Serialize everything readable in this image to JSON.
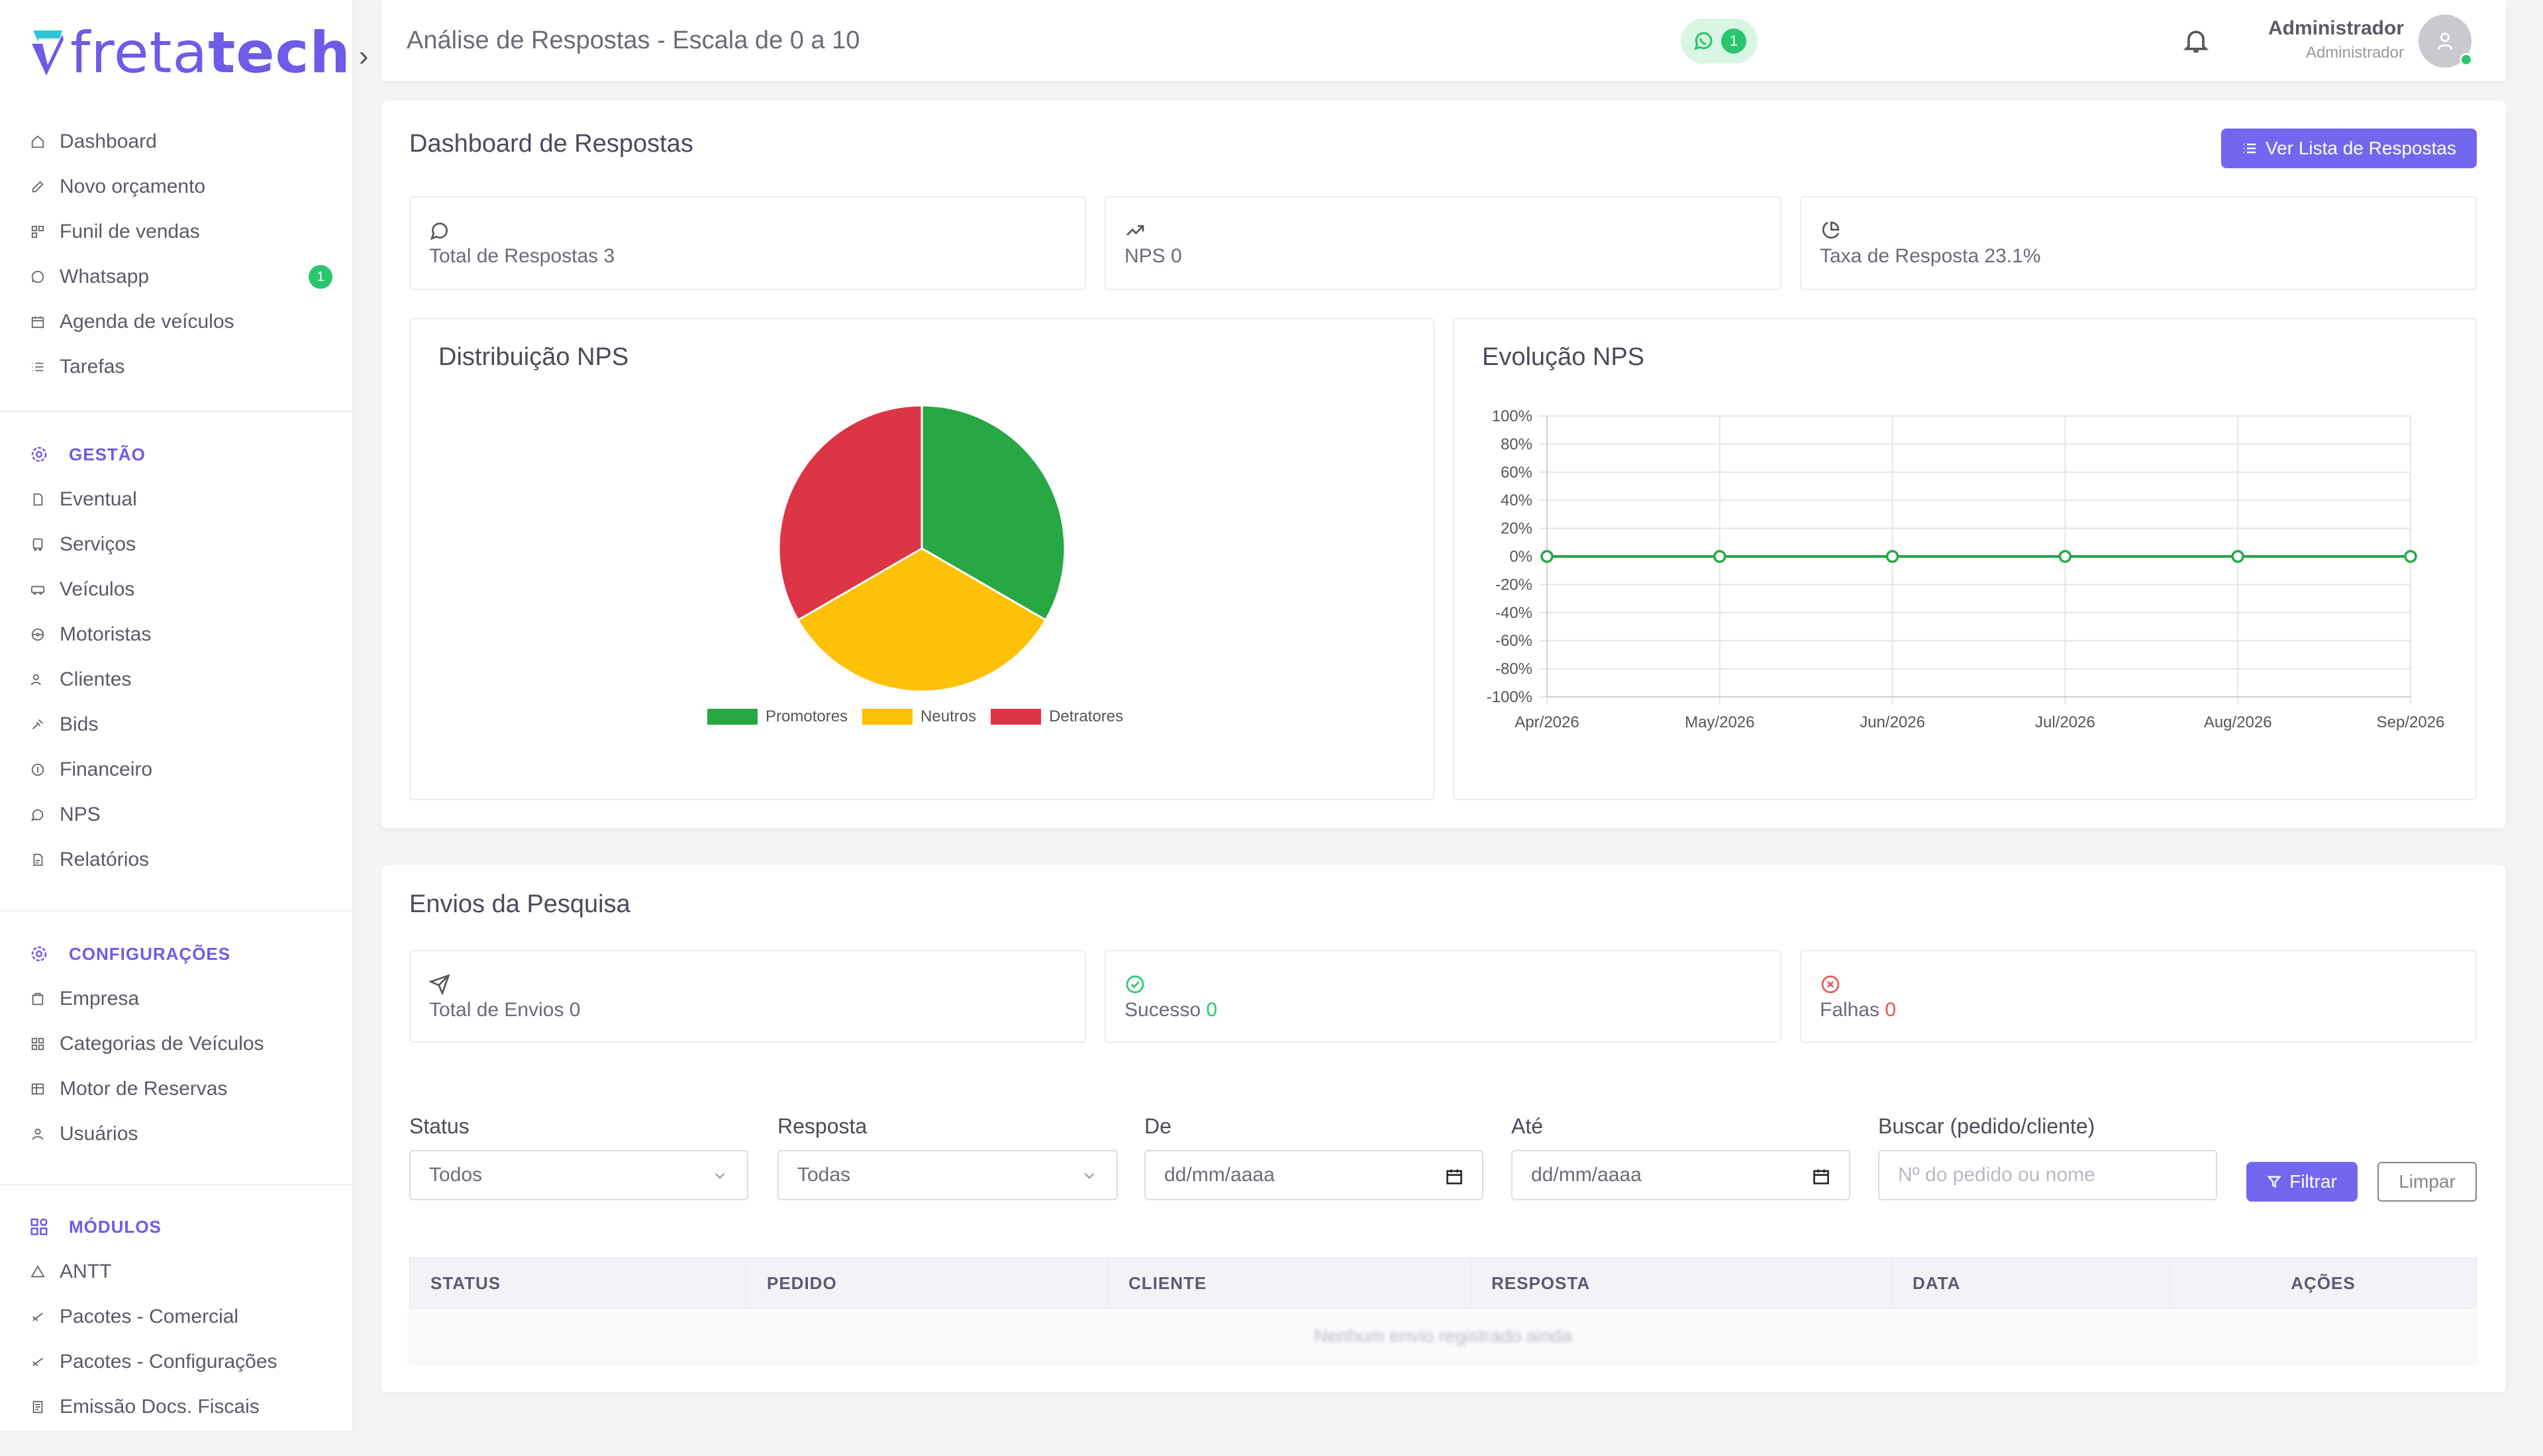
{
  "brand": {
    "name_part1": "freta",
    "name_part2": "tech",
    "accent": "#6c5ce7"
  },
  "sidebar": {
    "items": [
      {
        "label": "Dashboard",
        "icon": "home-icon"
      },
      {
        "label": "Novo orçamento",
        "icon": "edit-icon"
      },
      {
        "label": "Funil de vendas",
        "icon": "funnel-icon"
      },
      {
        "label": "Whatsapp",
        "icon": "whatsapp-icon",
        "badge": "1"
      },
      {
        "label": "Agenda de veículos",
        "icon": "calendar-icon"
      },
      {
        "label": "Tarefas",
        "icon": "list-icon"
      }
    ],
    "gestao_title": "GESTÃO",
    "gestao": [
      {
        "label": "Eventual",
        "icon": "file-icon"
      },
      {
        "label": "Serviços",
        "icon": "bus-icon"
      },
      {
        "label": "Veículos",
        "icon": "truck-icon"
      },
      {
        "label": "Motoristas",
        "icon": "steering-icon"
      },
      {
        "label": "Clientes",
        "icon": "users-icon"
      },
      {
        "label": "Bids",
        "icon": "gavel-icon"
      },
      {
        "label": "Financeiro",
        "icon": "coin-icon"
      },
      {
        "label": "NPS",
        "icon": "chat-icon"
      },
      {
        "label": "Relatórios",
        "icon": "report-icon"
      }
    ],
    "config_title": "CONFIGURAÇÕES",
    "config": [
      {
        "label": "Empresa",
        "icon": "building-icon"
      },
      {
        "label": "Categorias de Veículos",
        "icon": "grid-icon"
      },
      {
        "label": "Motor de Reservas",
        "icon": "table-icon"
      },
      {
        "label": "Usuários",
        "icon": "user-icon"
      }
    ],
    "modulos_title": "MÓDULOS",
    "modulos": [
      {
        "label": "ANTT",
        "icon": "triangle-icon"
      },
      {
        "label": "Pacotes - Comercial",
        "icon": "package-icon"
      },
      {
        "label": "Pacotes - Configurações",
        "icon": "package-settings-icon"
      },
      {
        "label": "Emissão Docs. Fiscais",
        "icon": "document-icon"
      }
    ]
  },
  "header": {
    "title": "Análise de Respostas - Escala de 0 a 10",
    "whatsapp_count": "1",
    "user_name": "Administrador",
    "user_role": "Administrador"
  },
  "dashboard": {
    "title": "Dashboard de Respostas",
    "list_button": "Ver Lista de Respostas",
    "stats": [
      {
        "label": "Total de Respostas 3",
        "icon": "message-icon"
      },
      {
        "label": "NPS 0",
        "icon": "trending-up-icon"
      },
      {
        "label": "Taxa de Resposta 23.1%",
        "icon": "pie-icon"
      }
    ],
    "pie_title": "Distribuição NPS",
    "line_title": "Evolução NPS"
  },
  "chart_data": [
    {
      "type": "pie",
      "title": "Distribuição NPS",
      "categories": [
        "Promotores",
        "Neutros",
        "Detratores"
      ],
      "values": [
        1,
        1,
        1
      ],
      "colors": [
        "#28a745",
        "#ffc107",
        "#dc3545"
      ],
      "legend": "bottom"
    },
    {
      "type": "line",
      "title": "Evolução NPS",
      "x": [
        "Apr/2026",
        "May/2026",
        "Jun/2026",
        "Jul/2026",
        "Aug/2026",
        "Sep/2026"
      ],
      "series": [
        {
          "values": [
            0,
            0,
            0,
            0,
            0,
            0
          ],
          "color": "#28a745"
        }
      ],
      "ylim": [
        -100,
        100
      ],
      "yticks": [
        "100%",
        "80%",
        "60%",
        "40%",
        "20%",
        "0%",
        "-20%",
        "-40%",
        "-60%",
        "-80%",
        "-100%"
      ],
      "grid": true
    }
  ],
  "envios": {
    "title": "Envios da Pesquisa",
    "total_label": "Total de Envios 0",
    "sucesso_label": "Sucesso",
    "sucesso_value": "0",
    "falhas_label": "Falhas",
    "falhas_value": "0"
  },
  "filters": {
    "status_label": "Status",
    "status_value": "Todos",
    "resposta_label": "Resposta",
    "resposta_value": "Todas",
    "de_label": "De",
    "de_placeholder": "dd/mm/aaaa",
    "ate_label": "Até",
    "ate_placeholder": "dd/mm/aaaa",
    "buscar_label": "Buscar (pedido/cliente)",
    "buscar_placeholder": "Nº do pedido ou nome",
    "filtrar": "Filtrar",
    "limpar": "Limpar"
  },
  "table": {
    "columns": [
      "STATUS",
      "PEDIDO",
      "CLIENTE",
      "RESPOSTA",
      "DATA",
      "AÇÕES"
    ],
    "empty_message": "Nenhum envio registrado ainda"
  }
}
